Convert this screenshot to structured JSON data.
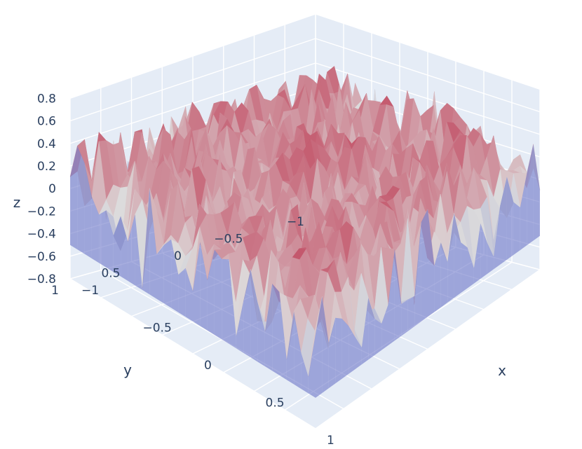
{
  "chart_data": {
    "type": "surface",
    "title": "",
    "colorscale": "coolwarm",
    "colors": {
      "background_plane": "#e5ecf6",
      "grid": "#ffffff",
      "text": "#2a3f5f",
      "surface_low": "#3b4cc0",
      "surface_mid": "#dddcdc",
      "surface_high": "#b40426"
    },
    "x_axis": {
      "title": "x",
      "range": [
        -1,
        1
      ],
      "tickvals": [
        -1,
        -0.5,
        0,
        0.5,
        1
      ],
      "ticktext": [
        "−1",
        "−0.5",
        "0",
        "0.5",
        "1"
      ]
    },
    "y_axis": {
      "title": "y",
      "range": [
        -1,
        1
      ],
      "tickvals": [
        -1,
        -0.5,
        0,
        0.5,
        1
      ],
      "ticktext": [
        "−1",
        "−0.5",
        "0",
        "0.5",
        "1"
      ]
    },
    "z_axis": {
      "title": "z",
      "range": [
        -0.8,
        0.8
      ],
      "tickvals": [
        -0.8,
        -0.6,
        -0.4,
        -0.2,
        0,
        0.2,
        0.4,
        0.6,
        0.8
      ],
      "ticktext": [
        "−0.8",
        "−0.6",
        "−0.4",
        "−0.2",
        "0",
        "0.2",
        "0.4",
        "0.6",
        "0.8"
      ]
    },
    "surface": {
      "description_of_shape": "noisy spiky surface, high near edges, dips near the outer corners",
      "z_min": -0.8,
      "z_max": 0.8
    }
  }
}
